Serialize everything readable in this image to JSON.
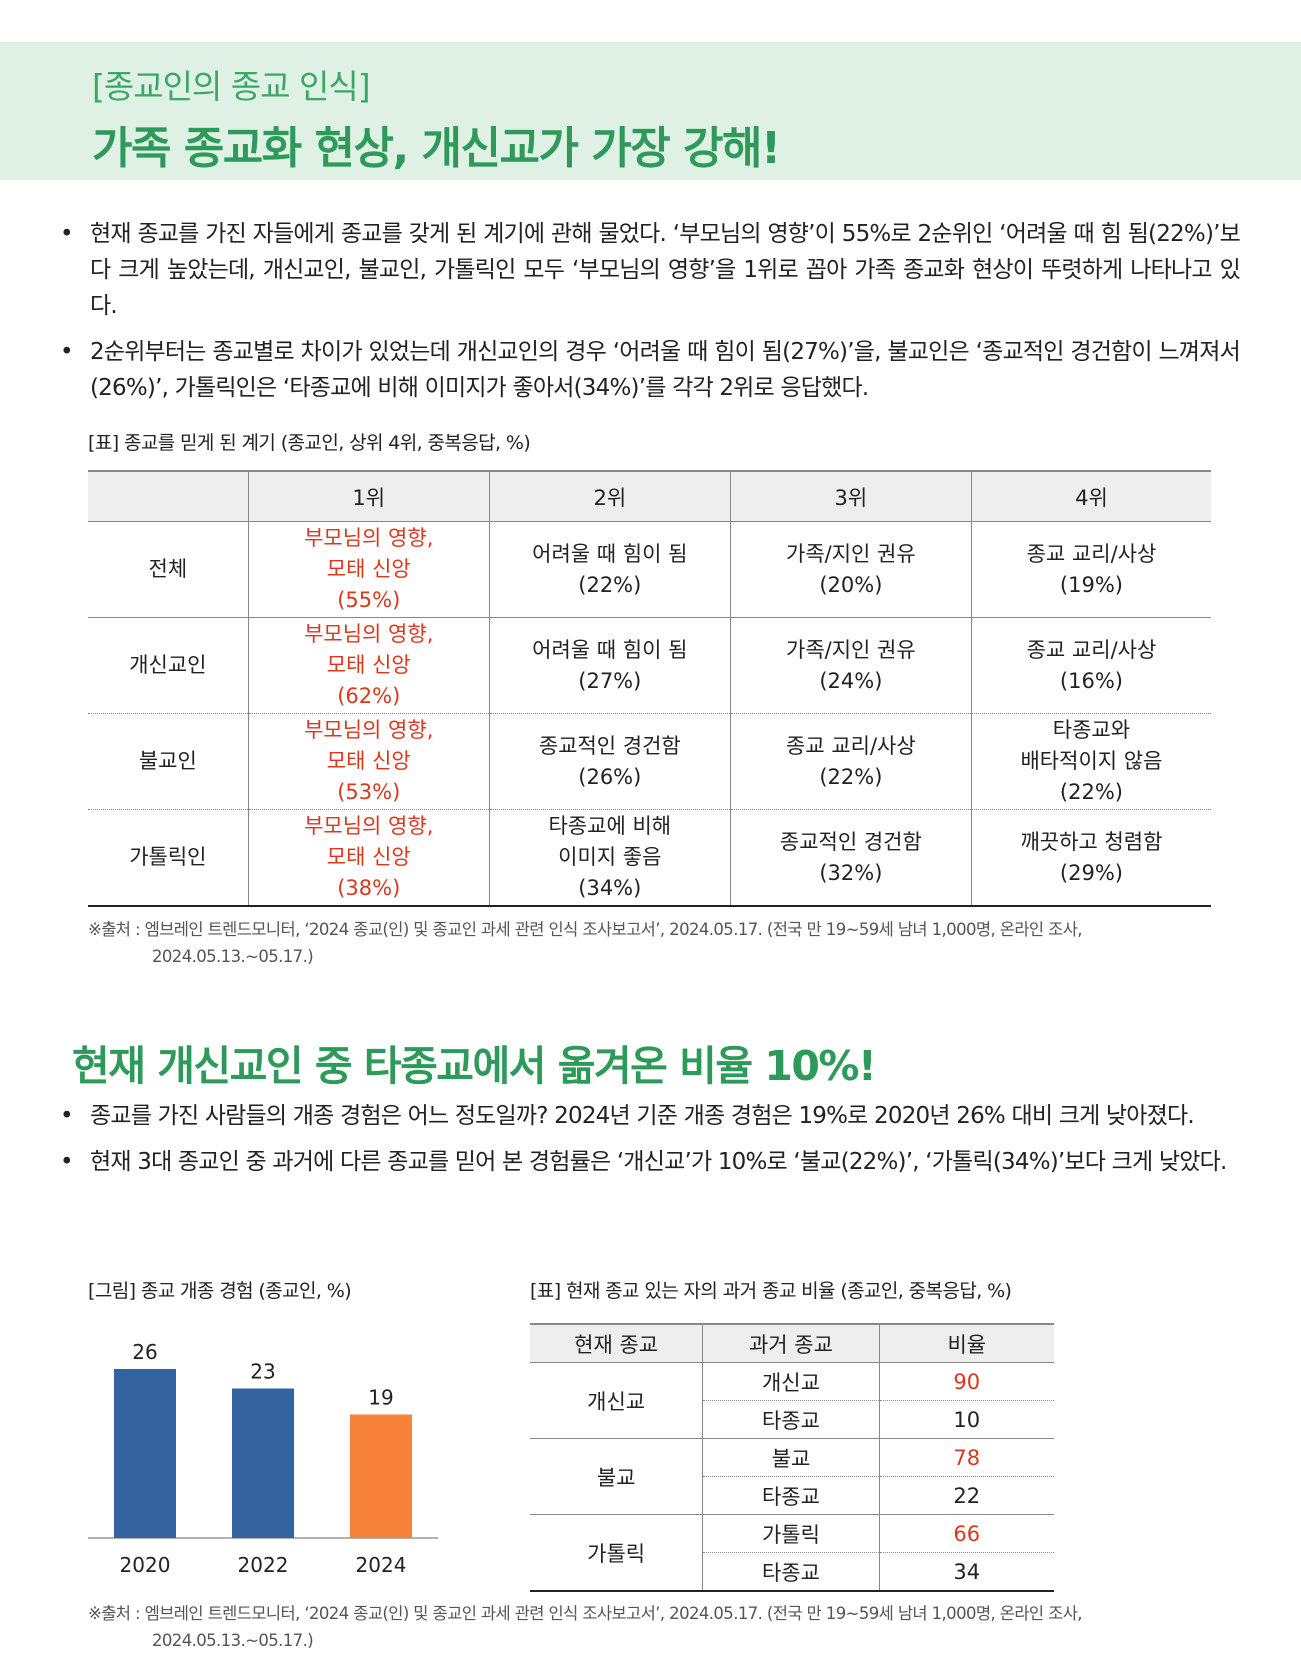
{
  "header": {
    "subtitle": "[종교인의 종교 인식]",
    "title": "가족 종교화 현상, 개신교가 가장 강해!"
  },
  "section1": {
    "bullets": [
      "현재 종교를 가진 자들에게 종교를 갖게 된 계기에 관해 물었다. ‘부모님의 영향’이 55%로 2순위인 ‘어려울 때 힘 됨(22%)’보다 크게 높았는데, 개신교인, 불교인, 가톨릭인 모두 ‘부모님의 영향’을 1위로 꼽아 가족 종교화 현상이 뚜렷하게 나타나고 있다.",
      "2순위부터는 종교별로 차이가 있었는데 개신교인의 경우 ‘어려울 때 힘이 됨(27%)’을, 불교인은 ‘종교적인 경건함이 느껴져서(26%)’, 가톨릭인은 ‘타종교에 비해 이미지가 좋아서(34%)’를 각각 2위로 응답했다."
    ],
    "table_caption": "[표] 종교를 믿게 된 계기 (종교인, 상위 4위, 중복응답, %)",
    "table": {
      "headers": [
        "",
        "1위",
        "2위",
        "3위",
        "4위"
      ],
      "rows": [
        {
          "label": "전체",
          "cells": [
            [
              "부모님의 영향,",
              "모태 신앙",
              "(55%)"
            ],
            [
              "어려울 때 힘이 됨",
              "(22%)"
            ],
            [
              "가족/지인 권유",
              "(20%)"
            ],
            [
              "종교 교리/사상",
              "(19%)"
            ]
          ]
        },
        {
          "label": "개신교인",
          "cells": [
            [
              "부모님의 영향,",
              "모태 신앙",
              "(62%)"
            ],
            [
              "어려울 때 힘이 됨",
              "(27%)"
            ],
            [
              "가족/지인 권유",
              "(24%)"
            ],
            [
              "종교 교리/사상",
              "(16%)"
            ]
          ]
        },
        {
          "label": "불교인",
          "cells": [
            [
              "부모님의 영향,",
              "모태 신앙",
              "(53%)"
            ],
            [
              "종교적인 경건함",
              "(26%)"
            ],
            [
              "종교 교리/사상",
              "(22%)"
            ],
            [
              "타종교와",
              "배타적이지 않음",
              "(22%)"
            ]
          ]
        },
        {
          "label": "가톨릭인",
          "cells": [
            [
              "부모님의 영향,",
              "모태 신앙",
              "(38%)"
            ],
            [
              "타종교에 비해",
              "이미지 좋음",
              "(34%)"
            ],
            [
              "종교적인 경건함",
              "(32%)"
            ],
            [
              "깨끗하고 청렴함",
              "(29%)"
            ]
          ]
        }
      ]
    },
    "source_line1": "※출처 : 엠브레인 트렌드모니터, ‘2024 종교(인) 및 종교인 과세 관련 인식 조사보고서’, 2024.05.17. (전국 만 19~59세 남녀 1,000명, 온라인 조사,",
    "source_line2": "2024.05.13.~05.17.)"
  },
  "section2": {
    "title": "현재 개신교인 중 타종교에서 옮겨온 비율 10%!",
    "bullets": [
      "종교를 가진 사람들의 개종 경험은 어느 정도일까? 2024년 기준 개종 경험은 19%로 2020년 26% 대비 크게 낮아졌다.",
      "현재 3대 종교인 중 과거에 다른 종교를 믿어 본 경험률은 ‘개신교’가 10%로 ‘불교(22%)’, ‘가톨릭(34%)’보다 크게 낮았다."
    ],
    "chart_caption": "[그림] 종교 개종 경험 (종교인, %)",
    "table_caption": "[표] 현재 종교 있는 자의 과거 종교 비율 (종교인, 중복응답, %)",
    "table": {
      "headers": [
        "현재 종교",
        "과거 종교",
        "비율"
      ],
      "groups": [
        {
          "religion": "개신교",
          "rows": [
            {
              "past": "개신교",
              "value": "90",
              "highlight": true
            },
            {
              "past": "타종교",
              "value": "10",
              "highlight": false
            }
          ]
        },
        {
          "religion": "불교",
          "rows": [
            {
              "past": "불교",
              "value": "78",
              "highlight": true
            },
            {
              "past": "타종교",
              "value": "22",
              "highlight": false
            }
          ]
        },
        {
          "religion": "가톨릭",
          "rows": [
            {
              "past": "가톨릭",
              "value": "66",
              "highlight": true
            },
            {
              "past": "타종교",
              "value": "34",
              "highlight": false
            }
          ]
        }
      ]
    },
    "source_line1": "※출처 : 엠브레인 트렌드모니터, ‘2024 종교(인) 및 종교인 과세 관련 인식 조사보고서’, 2024.05.17. (전국 만 19~59세 남녀 1,000명, 온라인 조사,",
    "source_line2": "2024.05.13.~05.17.)"
  },
  "chart_data": {
    "type": "bar",
    "categories": [
      "2020",
      "2022",
      "2024"
    ],
    "values": [
      26,
      23,
      19
    ],
    "colors": [
      "#3563a0",
      "#3563a0",
      "#f9823a"
    ],
    "title": "",
    "xlabel": "",
    "ylabel": "",
    "ylim": [
      0,
      30
    ]
  },
  "colors": {
    "accent_green": "#2e9a5a",
    "banner_bg": "#dff0e4",
    "highlight_red": "#d8391e",
    "bar_blue": "#3563a0",
    "bar_orange": "#f9823a"
  }
}
